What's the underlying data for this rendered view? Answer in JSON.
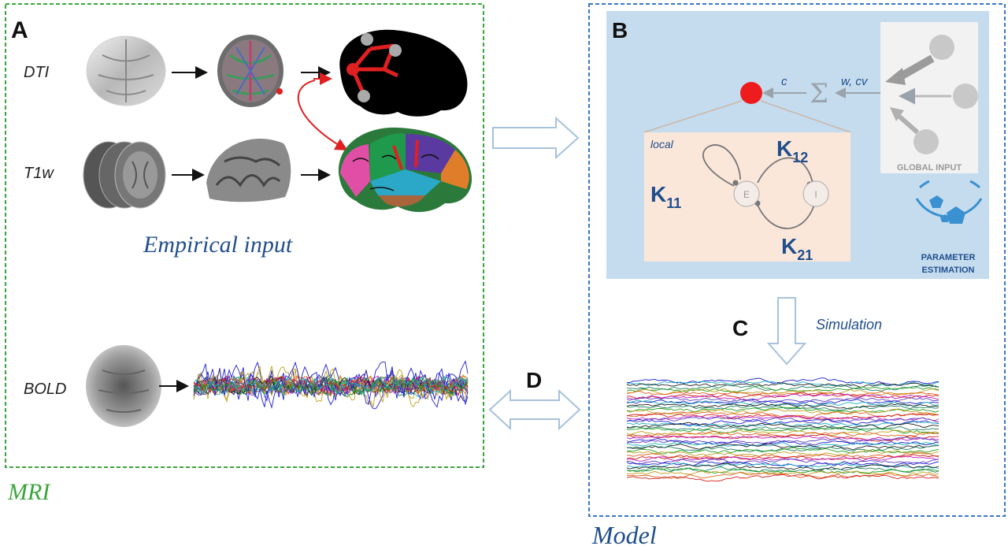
{
  "panels": {
    "a_letter": "A",
    "b_letter": "B",
    "c_letter": "C",
    "d_letter": "D"
  },
  "mri": {
    "label": "MRI",
    "rows": [
      {
        "label": "DTI"
      },
      {
        "label": "T1w"
      },
      {
        "label": "BOLD"
      }
    ],
    "empirical_label": "Empirical input"
  },
  "model": {
    "label": "Model",
    "simulation_label": "Simulation",
    "c_label": "c",
    "wcv_label": "w, cv",
    "sum_symbol": "Σ",
    "global_input_label": "GLOBAL INPUT",
    "param_label_1": "PARAMETER",
    "param_label_2": "ESTIMATION",
    "local_label": "local",
    "e_label": "E",
    "i_label": "I",
    "k11": {
      "k": "K",
      "sub": "11"
    },
    "k12": {
      "k": "K",
      "sub": "12"
    },
    "k21": {
      "k": "K",
      "sub": "21"
    }
  },
  "colors": {
    "mri_border": "#3aa63a",
    "model_border": "#3a78c8",
    "model_panel_bg": "#c5dcee",
    "local_bg": "#fae7da",
    "node_red": "#ee1c1c",
    "text_blue": "#1f4e8c",
    "k_blue": "#1f4e8c"
  }
}
